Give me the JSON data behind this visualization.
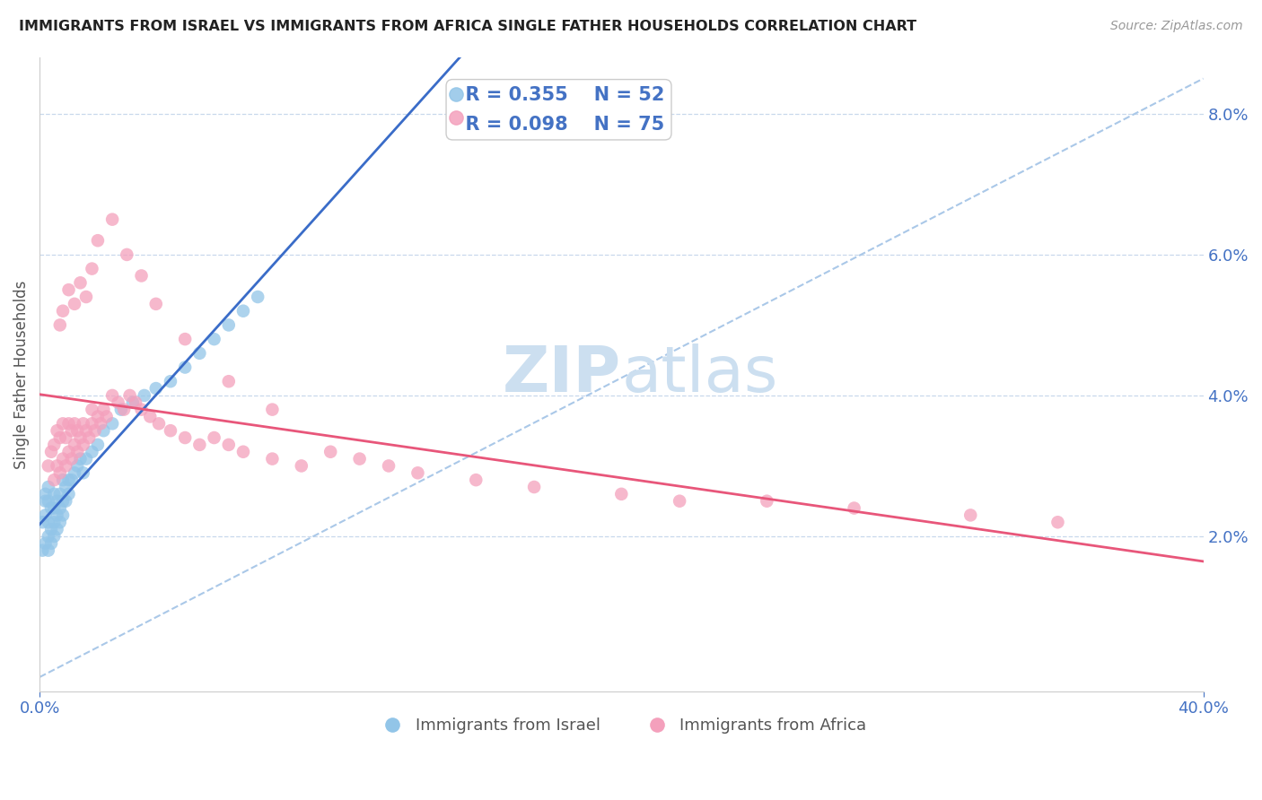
{
  "title": "IMMIGRANTS FROM ISRAEL VS IMMIGRANTS FROM AFRICA SINGLE FATHER HOUSEHOLDS CORRELATION CHART",
  "source": "Source: ZipAtlas.com",
  "ylabel": "Single Father Households",
  "legend_r_israel": "R = 0.355",
  "legend_n_israel": "N = 52",
  "legend_r_africa": "R = 0.098",
  "legend_n_africa": "N = 75",
  "color_israel": "#92c5e8",
  "color_africa": "#f4a0bc",
  "color_regression_israel": "#3a6cc8",
  "color_regression_africa": "#e8567a",
  "color_diagonal": "#aac8e8",
  "title_color": "#222222",
  "axis_label_color": "#4472c4",
  "watermark_color": "#ccdff0",
  "background_color": "#ffffff",
  "xlim": [
    0.0,
    0.4
  ],
  "ylim": [
    -0.002,
    0.088
  ],
  "xticks": [
    0.0,
    0.4
  ],
  "yticks": [
    0.02,
    0.04,
    0.06,
    0.08
  ],
  "israel_x": [
    0.001,
    0.001,
    0.002,
    0.002,
    0.002,
    0.002,
    0.003,
    0.003,
    0.003,
    0.003,
    0.003,
    0.004,
    0.004,
    0.004,
    0.005,
    0.005,
    0.005,
    0.005,
    0.006,
    0.006,
    0.006,
    0.007,
    0.007,
    0.007,
    0.008,
    0.008,
    0.008,
    0.009,
    0.009,
    0.01,
    0.01,
    0.011,
    0.012,
    0.013,
    0.014,
    0.015,
    0.016,
    0.018,
    0.02,
    0.022,
    0.025,
    0.028,
    0.032,
    0.036,
    0.04,
    0.045,
    0.05,
    0.055,
    0.06,
    0.065,
    0.07,
    0.075
  ],
  "israel_y": [
    0.018,
    0.022,
    0.019,
    0.023,
    0.025,
    0.026,
    0.018,
    0.02,
    0.022,
    0.025,
    0.027,
    0.019,
    0.021,
    0.024,
    0.02,
    0.022,
    0.024,
    0.026,
    0.021,
    0.023,
    0.025,
    0.022,
    0.024,
    0.026,
    0.023,
    0.025,
    0.028,
    0.025,
    0.027,
    0.026,
    0.028,
    0.028,
    0.029,
    0.03,
    0.031,
    0.029,
    0.031,
    0.032,
    0.033,
    0.035,
    0.036,
    0.038,
    0.039,
    0.04,
    0.041,
    0.042,
    0.044,
    0.046,
    0.048,
    0.05,
    0.052,
    0.054
  ],
  "africa_x": [
    0.003,
    0.004,
    0.005,
    0.005,
    0.006,
    0.006,
    0.007,
    0.007,
    0.008,
    0.008,
    0.009,
    0.009,
    0.01,
    0.01,
    0.011,
    0.011,
    0.012,
    0.012,
    0.013,
    0.013,
    0.014,
    0.015,
    0.015,
    0.016,
    0.017,
    0.018,
    0.018,
    0.019,
    0.02,
    0.021,
    0.022,
    0.023,
    0.025,
    0.027,
    0.029,
    0.031,
    0.033,
    0.035,
    0.038,
    0.041,
    0.045,
    0.05,
    0.055,
    0.06,
    0.065,
    0.07,
    0.08,
    0.09,
    0.1,
    0.11,
    0.12,
    0.13,
    0.15,
    0.17,
    0.2,
    0.22,
    0.25,
    0.28,
    0.32,
    0.35,
    0.007,
    0.008,
    0.01,
    0.012,
    0.014,
    0.016,
    0.018,
    0.02,
    0.025,
    0.03,
    0.035,
    0.04,
    0.05,
    0.065,
    0.08
  ],
  "africa_y": [
    0.03,
    0.032,
    0.028,
    0.033,
    0.03,
    0.035,
    0.029,
    0.034,
    0.031,
    0.036,
    0.03,
    0.034,
    0.032,
    0.036,
    0.031,
    0.035,
    0.033,
    0.036,
    0.032,
    0.035,
    0.034,
    0.033,
    0.036,
    0.035,
    0.034,
    0.036,
    0.038,
    0.035,
    0.037,
    0.036,
    0.038,
    0.037,
    0.04,
    0.039,
    0.038,
    0.04,
    0.039,
    0.038,
    0.037,
    0.036,
    0.035,
    0.034,
    0.033,
    0.034,
    0.033,
    0.032,
    0.031,
    0.03,
    0.032,
    0.031,
    0.03,
    0.029,
    0.028,
    0.027,
    0.026,
    0.025,
    0.025,
    0.024,
    0.023,
    0.022,
    0.05,
    0.052,
    0.055,
    0.053,
    0.056,
    0.054,
    0.058,
    0.062,
    0.065,
    0.06,
    0.057,
    0.053,
    0.048,
    0.042,
    0.038
  ]
}
